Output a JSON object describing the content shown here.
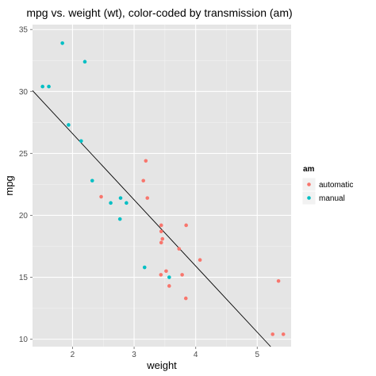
{
  "chart_data": {
    "type": "scatter",
    "title": "mpg vs. weight (wt), color-coded by transmission (am)",
    "xlabel": "weight",
    "ylabel": "mpg",
    "xlim": [
      1.35,
      5.55
    ],
    "ylim": [
      9.4,
      35.4
    ],
    "x_ticks": [
      2,
      3,
      4,
      5
    ],
    "y_ticks": [
      10,
      15,
      20,
      25,
      30,
      35
    ],
    "grid": true,
    "background_color": "#e5e5e5",
    "grid_color": "#ffffff",
    "legend": {
      "title": "am",
      "position": "right"
    },
    "series": [
      {
        "name": "automatic",
        "color": "#f8766d",
        "points": [
          [
            2.465,
            21.5
          ],
          [
            3.215,
            21.4
          ],
          [
            3.44,
            18.7
          ],
          [
            3.46,
            18.1
          ],
          [
            3.57,
            14.3
          ],
          [
            3.19,
            24.4
          ],
          [
            3.15,
            22.8
          ],
          [
            3.44,
            19.2
          ],
          [
            3.44,
            17.8
          ],
          [
            4.07,
            16.4
          ],
          [
            3.73,
            17.3
          ],
          [
            3.78,
            15.2
          ],
          [
            5.25,
            10.4
          ],
          [
            5.424,
            10.4
          ],
          [
            5.345,
            14.7
          ],
          [
            3.52,
            15.5
          ],
          [
            3.435,
            15.2
          ],
          [
            3.84,
            13.3
          ],
          [
            3.845,
            19.2
          ]
        ]
      },
      {
        "name": "manual",
        "color": "#00bfc4",
        "points": [
          [
            2.62,
            21.0
          ],
          [
            2.875,
            21.0
          ],
          [
            2.32,
            22.8
          ],
          [
            2.2,
            32.4
          ],
          [
            1.615,
            30.4
          ],
          [
            1.835,
            33.9
          ],
          [
            1.935,
            27.3
          ],
          [
            2.14,
            26.0
          ],
          [
            1.513,
            30.4
          ],
          [
            3.17,
            15.8
          ],
          [
            2.77,
            19.7
          ],
          [
            3.57,
            15.0
          ],
          [
            2.78,
            21.4
          ]
        ]
      }
    ],
    "fit_line": {
      "color": "#000000",
      "intercept": 37.285,
      "slope": -5.344
    }
  }
}
